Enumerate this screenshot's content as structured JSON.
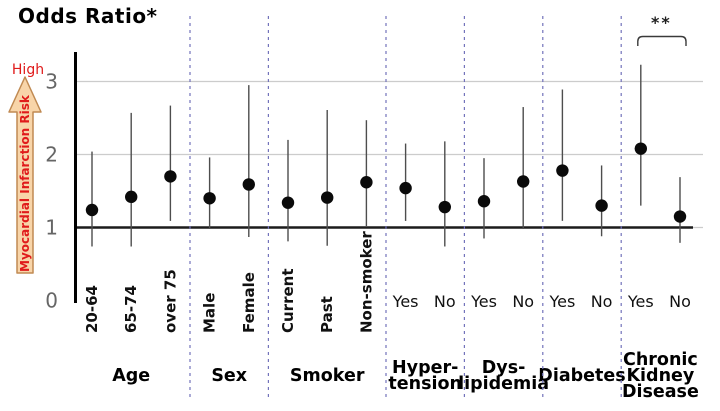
{
  "title": "Odds Ratio*",
  "y_axis": {
    "high_label": "High",
    "risk_label": "Myocardial Infarction Risk",
    "tick_labels": [
      "0",
      "1",
      "2",
      "3"
    ]
  },
  "colors": {
    "arrow_fill": "#f8d5a9",
    "arrow_stroke": "#c08a52",
    "risk_text": "#e01b1b",
    "gridline": "#cccccc",
    "separator": "#7373bb",
    "reference_line": "#1c1c1c",
    "ci_line": "#4d4d4d",
    "dot": "#0a0a0a",
    "tick_text": "#666666",
    "label_text": "#111111"
  },
  "chart_data": {
    "type": "scatter",
    "subtype": "forest-plot-dot-with-ci",
    "title": "Odds Ratio*",
    "ylabel": "Myocardial Infarction Risk",
    "ylim": [
      0,
      3.4
    ],
    "yticks": [
      0,
      1,
      2,
      3
    ],
    "reference_line_y": 1,
    "gridlines_y": [
      1,
      2,
      3
    ],
    "grid": true,
    "legend": false,
    "groups": [
      {
        "label_lines": [
          "Age"
        ],
        "rotated_ticks": true,
        "items": [
          {
            "label": "20-64",
            "or": 1.24,
            "ci": [
              0.74,
              2.04
            ]
          },
          {
            "label": "65-74",
            "or": 1.42,
            "ci": [
              0.74,
              2.57
            ]
          },
          {
            "label": "over 75",
            "or": 1.7,
            "ci": [
              1.09,
              2.67
            ]
          }
        ]
      },
      {
        "label_lines": [
          "Sex"
        ],
        "rotated_ticks": true,
        "items": [
          {
            "label": "Male",
            "or": 1.4,
            "ci": [
              0.98,
              1.96
            ]
          },
          {
            "label": "Female",
            "or": 1.59,
            "ci": [
              0.87,
              2.95
            ]
          }
        ]
      },
      {
        "label_lines": [
          "Smoker"
        ],
        "rotated_ticks": true,
        "items": [
          {
            "label": "Current",
            "or": 1.34,
            "ci": [
              0.81,
              2.2
            ]
          },
          {
            "label": "Past",
            "or": 1.41,
            "ci": [
              0.75,
              2.61
            ]
          },
          {
            "label": "Non-smoker",
            "or": 1.62,
            "ci": [
              1.02,
              2.47
            ]
          }
        ]
      },
      {
        "label_lines": [
          "Hyper-",
          "tension"
        ],
        "rotated_ticks": false,
        "items": [
          {
            "label": "Yes",
            "or": 1.54,
            "ci": [
              1.09,
              2.15
            ]
          },
          {
            "label": "No",
            "or": 1.28,
            "ci": [
              0.74,
              2.18
            ]
          }
        ]
      },
      {
        "label_lines": [
          "Dys-",
          "lipidemia"
        ],
        "rotated_ticks": false,
        "items": [
          {
            "label": "Yes",
            "or": 1.36,
            "ci": [
              0.85,
              1.95
            ]
          },
          {
            "label": "No",
            "or": 1.63,
            "ci": [
              0.98,
              2.65
            ]
          }
        ]
      },
      {
        "label_lines": [
          "Diabetes"
        ],
        "rotated_ticks": false,
        "items": [
          {
            "label": "Yes",
            "or": 1.78,
            "ci": [
              1.09,
              2.89
            ]
          },
          {
            "label": "No",
            "or": 1.3,
            "ci": [
              0.88,
              1.85
            ]
          }
        ]
      },
      {
        "label_lines": [
          "Chronic",
          "Kidney",
          "Disease"
        ],
        "rotated_ticks": false,
        "items": [
          {
            "label": "Yes",
            "or": 2.08,
            "ci": [
              1.3,
              3.23
            ]
          },
          {
            "label": "No",
            "or": 1.15,
            "ci": [
              0.79,
              1.69
            ]
          }
        ]
      }
    ],
    "annotation": {
      "text": "**",
      "group_index": 6,
      "spans_items": [
        0,
        1
      ]
    }
  }
}
